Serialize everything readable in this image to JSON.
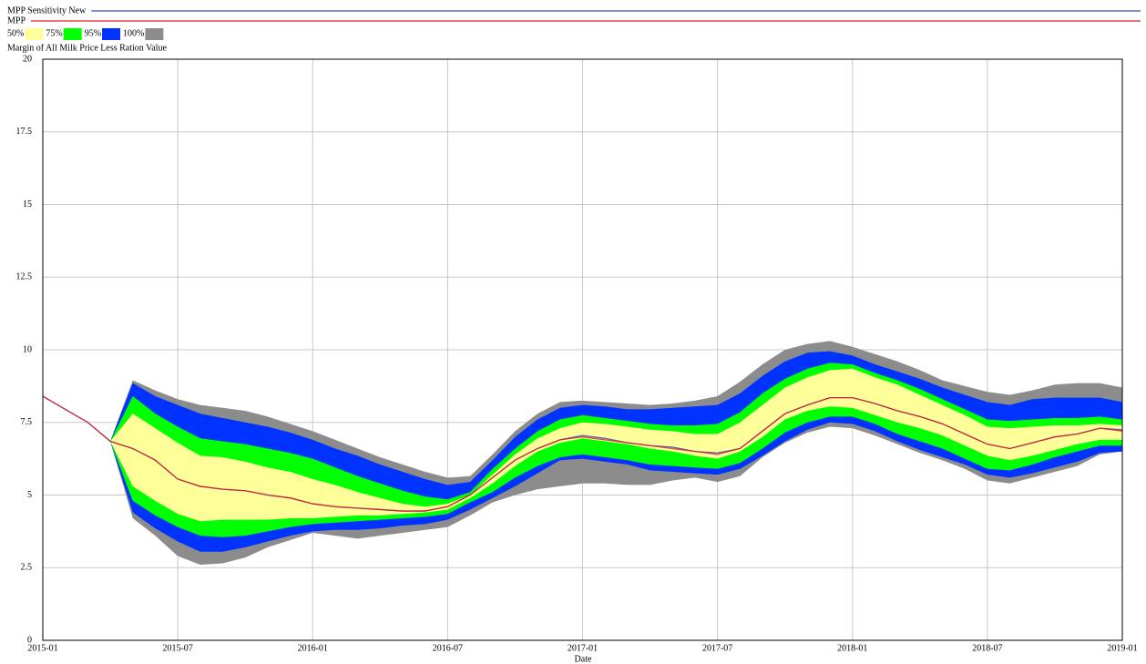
{
  "chart_data": {
    "type": "line",
    "y_label": "Margin of All Milk Price Less Ration Value",
    "x_label": "Date",
    "x": [
      "2015-01",
      "2015-02",
      "2015-03",
      "2015-04",
      "2015-05",
      "2015-06",
      "2015-07",
      "2015-08",
      "2015-09",
      "2015-10",
      "2015-11",
      "2015-12",
      "2016-01",
      "2016-02",
      "2016-03",
      "2016-04",
      "2016-05",
      "2016-06",
      "2016-07",
      "2016-08",
      "2016-09",
      "2016-10",
      "2016-11",
      "2016-12",
      "2017-01",
      "2017-02",
      "2017-03",
      "2017-04",
      "2017-05",
      "2017-06",
      "2017-07",
      "2017-08",
      "2017-09",
      "2017-10",
      "2017-11",
      "2017-12",
      "2018-01",
      "2018-02",
      "2018-03",
      "2018-04",
      "2018-05",
      "2018-06",
      "2018-07",
      "2018-08",
      "2018-09",
      "2018-10",
      "2018-11",
      "2018-12",
      "2019-01"
    ],
    "xticks": [
      "2015-01",
      "2015-07",
      "2016-01",
      "2016-07",
      "2017-01",
      "2017-07",
      "2018-01",
      "2018-07",
      "2019-01"
    ],
    "ylim": [
      0,
      20
    ],
    "yticks": [
      0,
      2.5,
      5,
      7.5,
      10,
      12.5,
      15,
      17.5,
      20
    ],
    "grid": true,
    "series": [
      {
        "name": "MPP Sensitivity New",
        "color": "#3344cc",
        "values": [
          8.4,
          7.95,
          7.5,
          6.85,
          6.6,
          6.2,
          5.55,
          5.3,
          5.2,
          5.15,
          5.0,
          4.9,
          4.7,
          4.6,
          4.55,
          4.5,
          4.45,
          4.45,
          4.6,
          5.0,
          5.6,
          6.2,
          6.6,
          6.9,
          7.05,
          6.95,
          6.8,
          6.7,
          6.65,
          6.5,
          6.45,
          6.6,
          7.2,
          7.8,
          8.1,
          8.35,
          8.35,
          8.15,
          7.9,
          7.7,
          7.45,
          7.1,
          6.75,
          6.6,
          6.8,
          7.0,
          7.1,
          7.3,
          7.25
        ]
      },
      {
        "name": "MPP",
        "color": "#e02020",
        "values": [
          8.4,
          7.95,
          7.5,
          6.85,
          6.6,
          6.2,
          5.55,
          5.3,
          5.2,
          5.15,
          5.0,
          4.9,
          4.7,
          4.6,
          4.55,
          4.5,
          4.45,
          4.45,
          4.6,
          5.0,
          5.6,
          6.2,
          6.6,
          6.9,
          7.0,
          6.9,
          6.8,
          6.7,
          6.6,
          6.5,
          6.4,
          6.6,
          7.2,
          7.8,
          8.1,
          8.35,
          8.35,
          8.15,
          7.9,
          7.7,
          7.45,
          7.1,
          6.75,
          6.6,
          6.8,
          7.0,
          7.1,
          7.3,
          7.2
        ]
      }
    ],
    "bands": [
      {
        "name": "50%",
        "color": "#ffff99",
        "upper": [
          null,
          null,
          null,
          6.85,
          7.8,
          7.3,
          6.8,
          6.35,
          6.3,
          6.15,
          5.95,
          5.8,
          5.55,
          5.35,
          5.1,
          4.9,
          4.7,
          4.6,
          4.7,
          5.0,
          5.7,
          6.4,
          6.95,
          7.3,
          7.5,
          7.45,
          7.35,
          7.25,
          7.2,
          7.1,
          7.1,
          7.5,
          8.1,
          8.7,
          9.05,
          9.3,
          9.35,
          9.05,
          8.8,
          8.45,
          8.1,
          7.75,
          7.35,
          7.3,
          7.35,
          7.4,
          7.4,
          7.45,
          7.4
        ],
        "lower": [
          null,
          null,
          null,
          6.85,
          5.3,
          4.8,
          4.35,
          4.1,
          4.15,
          4.15,
          4.15,
          4.2,
          4.2,
          4.25,
          4.3,
          4.3,
          4.35,
          4.4,
          4.5,
          4.9,
          5.4,
          6.0,
          6.5,
          6.8,
          6.95,
          6.85,
          6.75,
          6.6,
          6.5,
          6.35,
          6.25,
          6.5,
          7.0,
          7.6,
          7.9,
          8.05,
          8.0,
          7.75,
          7.5,
          7.3,
          7.05,
          6.7,
          6.35,
          6.2,
          6.35,
          6.55,
          6.75,
          6.9,
          6.9
        ]
      },
      {
        "name": "75%",
        "color": "#00ff00",
        "upper": [
          null,
          null,
          null,
          6.85,
          8.4,
          7.8,
          7.35,
          6.95,
          6.85,
          6.75,
          6.6,
          6.45,
          6.25,
          5.95,
          5.65,
          5.4,
          5.15,
          4.95,
          4.85,
          5.1,
          5.9,
          6.6,
          7.2,
          7.6,
          7.75,
          7.65,
          7.55,
          7.45,
          7.4,
          7.4,
          7.45,
          7.85,
          8.5,
          9.0,
          9.35,
          9.55,
          9.5,
          9.2,
          8.95,
          8.65,
          8.3,
          7.95,
          7.6,
          7.55,
          7.6,
          7.65,
          7.65,
          7.7,
          7.6
        ],
        "lower": [
          null,
          null,
          null,
          6.85,
          4.8,
          4.3,
          3.9,
          3.6,
          3.55,
          3.6,
          3.75,
          3.9,
          4.0,
          4.05,
          4.1,
          4.15,
          4.2,
          4.25,
          4.35,
          4.75,
          5.1,
          5.6,
          6.0,
          6.3,
          6.4,
          6.3,
          6.2,
          6.05,
          6.0,
          5.95,
          5.9,
          6.1,
          6.6,
          7.15,
          7.5,
          7.7,
          7.7,
          7.45,
          7.1,
          6.85,
          6.6,
          6.25,
          5.9,
          5.85,
          6.05,
          6.3,
          6.5,
          6.7,
          6.7
        ]
      },
      {
        "name": "95%",
        "color": "#0033ff",
        "upper": [
          null,
          null,
          null,
          6.85,
          8.85,
          8.4,
          8.1,
          7.8,
          7.65,
          7.5,
          7.35,
          7.15,
          6.9,
          6.6,
          6.35,
          6.05,
          5.8,
          5.55,
          5.35,
          5.45,
          6.2,
          7.0,
          7.6,
          8.0,
          8.1,
          8.05,
          7.95,
          7.95,
          8.0,
          8.05,
          8.1,
          8.5,
          9.1,
          9.6,
          9.9,
          9.95,
          9.8,
          9.5,
          9.25,
          9.0,
          8.7,
          8.45,
          8.2,
          8.1,
          8.3,
          8.35,
          8.35,
          8.35,
          8.2
        ],
        "lower": [
          null,
          null,
          null,
          6.85,
          4.4,
          3.85,
          3.4,
          3.05,
          3.05,
          3.2,
          3.4,
          3.6,
          3.75,
          3.8,
          3.8,
          3.85,
          3.95,
          4.0,
          4.15,
          4.5,
          4.9,
          5.3,
          5.75,
          6.2,
          6.25,
          6.15,
          6.05,
          5.85,
          5.8,
          5.75,
          5.7,
          5.9,
          6.35,
          6.85,
          7.25,
          7.5,
          7.45,
          7.2,
          6.85,
          6.55,
          6.3,
          6.05,
          5.7,
          5.6,
          5.75,
          5.95,
          6.15,
          6.45,
          6.5
        ]
      },
      {
        "name": "100%",
        "color": "#8c8c8c",
        "upper": [
          null,
          null,
          null,
          6.85,
          8.95,
          8.6,
          8.3,
          8.1,
          8.0,
          7.9,
          7.7,
          7.45,
          7.2,
          6.9,
          6.6,
          6.3,
          6.05,
          5.8,
          5.6,
          5.65,
          6.4,
          7.2,
          7.8,
          8.2,
          8.25,
          8.2,
          8.15,
          8.1,
          8.15,
          8.25,
          8.4,
          8.9,
          9.5,
          10.0,
          10.2,
          10.3,
          10.1,
          9.85,
          9.6,
          9.3,
          8.95,
          8.75,
          8.55,
          8.45,
          8.6,
          8.8,
          8.85,
          8.85,
          8.7
        ],
        "lower": [
          null,
          null,
          null,
          6.85,
          4.2,
          3.6,
          2.9,
          2.6,
          2.65,
          2.85,
          3.2,
          3.45,
          3.7,
          3.6,
          3.5,
          3.6,
          3.7,
          3.8,
          3.9,
          4.3,
          4.75,
          5.0,
          5.2,
          5.3,
          5.4,
          5.4,
          5.35,
          5.35,
          5.5,
          5.6,
          5.45,
          5.65,
          6.3,
          6.8,
          7.15,
          7.35,
          7.3,
          7.05,
          6.75,
          6.45,
          6.2,
          5.9,
          5.5,
          5.4,
          5.6,
          5.8,
          6.0,
          6.4,
          6.5
        ]
      }
    ]
  }
}
